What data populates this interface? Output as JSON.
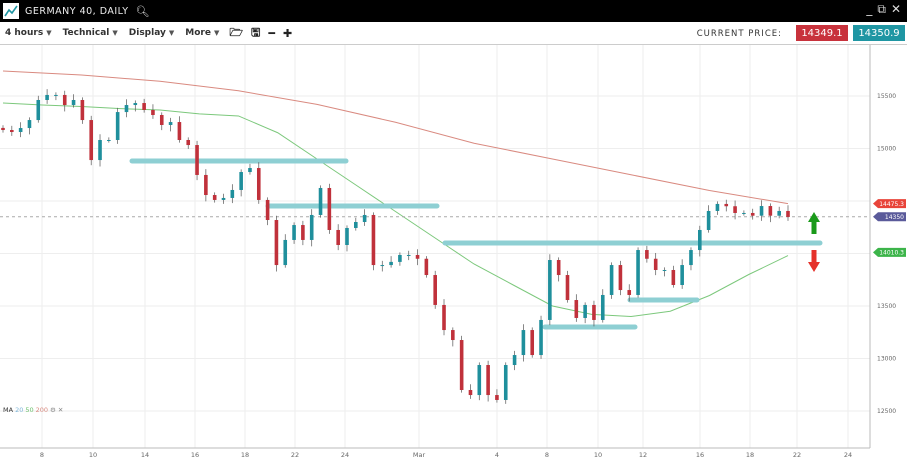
{
  "window": {
    "title": "GERMANY 40, DAILY",
    "icons": [
      "chart-logo-icon",
      "search-icon",
      "minimize-icon",
      "popout-icon",
      "close-icon"
    ]
  },
  "toolbar": {
    "timeframe": "4 hours",
    "technical": "Technical",
    "display": "Display",
    "more": "More",
    "icons": [
      "folder-open-icon",
      "save-icon",
      "zoom-out-icon",
      "zoom-in-icon"
    ],
    "current_price_label": "CURRENT PRICE:",
    "sell_price": "14349.1",
    "buy_price": "14350.9"
  },
  "colors": {
    "up": "#1f8f9c",
    "down": "#c0313b",
    "ma50": "#7cc87c",
    "ma200": "#d98a80",
    "support": "#8ecfd3",
    "arrow_up": "#1a9a1a",
    "arrow_down": "#e5312a"
  },
  "legend": {
    "label": "MA",
    "p1": "20",
    "p2": "50",
    "p3": "200"
  },
  "chart_data": {
    "type": "candlestick",
    "x_ticks": [
      "8",
      "10",
      "14",
      "16",
      "18",
      "22",
      "24",
      "Mar",
      "4",
      "8",
      "10",
      "12",
      "16",
      "18",
      "22",
      "24"
    ],
    "y_ticks": [
      15500,
      15000,
      13500,
      13000,
      12500
    ],
    "ylim": [
      12150,
      15950
    ],
    "grid": true,
    "closes": [
      15176,
      15157,
      15195,
      15271,
      15462,
      15510,
      15510,
      15414,
      15462,
      15271,
      14890,
      15081,
      15081,
      15347,
      15414,
      15433,
      15367,
      15319,
      15224,
      15252,
      15081,
      15033,
      14748,
      14557,
      14510,
      14529,
      14605,
      14776,
      14814,
      14510,
      14319,
      13890,
      14129,
      14271,
      14129,
      14367,
      14624,
      14224,
      14081,
      14243,
      14300,
      14367,
      13890,
      13890,
      13920,
      13986,
      13986,
      13950,
      13795,
      13510,
      13271,
      13176,
      12700,
      12652,
      12938,
      12652,
      12605,
      12938,
      13033,
      13271,
      13033,
      13367,
      13938,
      13795,
      13557,
      13386,
      13510,
      13367,
      13605,
      13890,
      13652,
      13605,
      14033,
      13950,
      13843,
      13843,
      13700,
      13890,
      14033,
      14224,
      14405,
      14472,
      14450,
      14386,
      14386,
      14360,
      14452,
      14360,
      14405,
      14348
    ],
    "ma50": [
      15433,
      15414,
      15400,
      15380,
      15367,
      15330,
      15310,
      15150,
      14900,
      14650,
      14400,
      14150,
      13900,
      13700,
      13500,
      13420,
      13400,
      13450,
      13600,
      13800,
      13980
    ],
    "ma200": [
      15738,
      15700,
      15640,
      15550,
      15420,
      15250,
      15050,
      14900,
      14750,
      14600,
      14475
    ],
    "levels": [
      14881,
      14452,
      14100,
      13300,
      13557
    ],
    "price_labels": {
      "ma200": "14475.3",
      "current": "14350",
      "ma50": "14010.3"
    }
  }
}
